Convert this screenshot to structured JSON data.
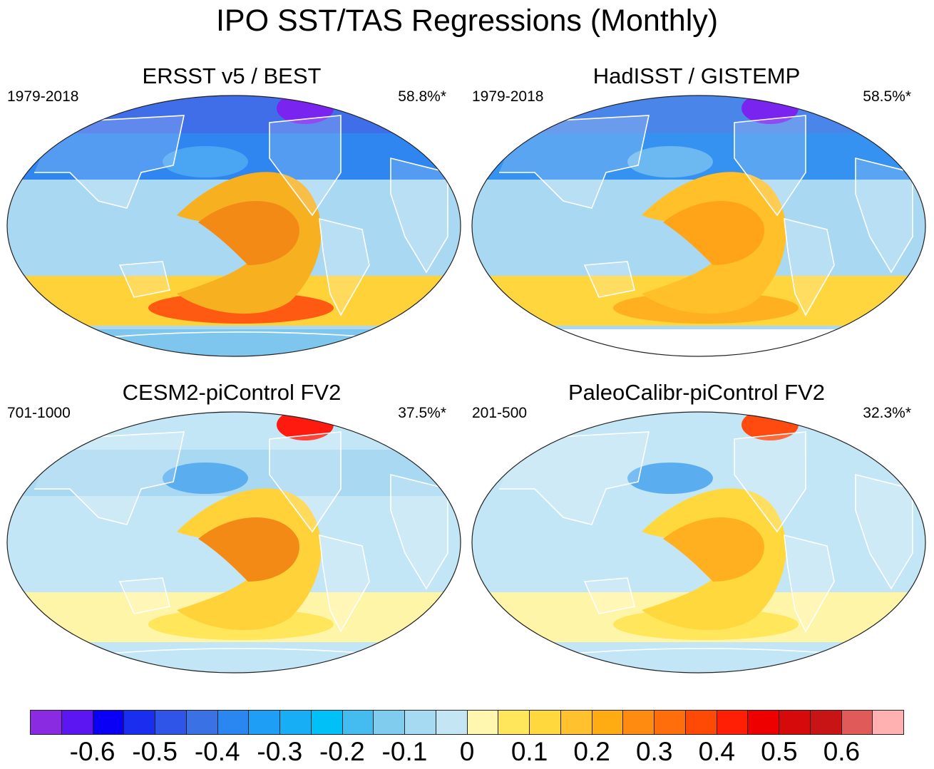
{
  "title": "IPO SST/TAS Regressions (Monthly)",
  "panels": [
    {
      "title": "ERSST v5 / BEST",
      "period": "1979-2018",
      "variance": "58.8%*",
      "style": {
        "arctic": "#3f6ee8",
        "north": "#2f86f0",
        "tropics": "#a9d8f2",
        "pacific": "#f6b020",
        "pacific_hot": "#f48a16",
        "south": "#ffd23a",
        "south_hot": "#ff5a12",
        "antarctic": "#7fc6ee",
        "highlat": "#7a24f0",
        "westpac": "#4aa6f2"
      }
    },
    {
      "title": "HadISST / GISTEMP",
      "period": "1979-2018",
      "variance": "58.5%*",
      "style": {
        "arctic": "#4a86ea",
        "north": "#3692f0",
        "tropics": "#a9d8f2",
        "pacific": "#ffc02a",
        "pacific_hot": "#ffa418",
        "south": "#ffd63e",
        "south_hot": "#ffb020",
        "antarctic": "#ffffff",
        "highlat": "#7a24f0",
        "westpac": "#6cb8f0"
      }
    },
    {
      "title": "CESM2-piControl FV2",
      "period": "701-1000",
      "variance": "37.5%*",
      "style": {
        "arctic": "#c2e6f5",
        "north": "#a9d8f2",
        "tropics": "#c2e6f5",
        "pacific": "#ffd23a",
        "pacific_hot": "#f48a16",
        "south": "#fff5a8",
        "south_hot": "#ffe65a",
        "antarctic": "#c2e6f5",
        "highlat": "#ff1a10",
        "westpac": "#5aaef0"
      }
    },
    {
      "title": "PaleoCalibr-piControl FV2",
      "period": "201-500",
      "variance": "32.3%*",
      "style": {
        "arctic": "#c2e6f5",
        "north": "#c2e6f5",
        "tropics": "#c2e6f5",
        "pacific": "#ffd83e",
        "pacific_hot": "#ffb020",
        "south": "#fff5a8",
        "south_hot": "#ffe65a",
        "antarctic": "#c2e6f5",
        "highlat": "#ff4a10",
        "westpac": "#5aaef0"
      }
    }
  ],
  "colorbar": {
    "colors": [
      "#8a2be2",
      "#5b16f2",
      "#0a00f5",
      "#1a2ef0",
      "#2f55e8",
      "#3a72e6",
      "#2a86f0",
      "#1f9ef5",
      "#17aef5",
      "#00c0f8",
      "#45bcf0",
      "#80ccef",
      "#a6d9f2",
      "#c4e6f4",
      "#fff7b0",
      "#ffe65a",
      "#ffd83e",
      "#ffc22e",
      "#ffab12",
      "#ff8c10",
      "#ff6e0a",
      "#ff4a05",
      "#ff1f05",
      "#ef0000",
      "#d60a0a",
      "#c81414",
      "#e05a5a",
      "#ffb0b0"
    ],
    "labels": [
      "-0.6",
      "-0.5",
      "-0.4",
      "-0.3",
      "-0.2",
      "-0.1",
      "0",
      "0.1",
      "0.2",
      "0.3",
      "0.4",
      "0.5",
      "0.6"
    ],
    "values": [
      -0.6,
      -0.5,
      -0.4,
      -0.3,
      -0.2,
      -0.1,
      0,
      0.1,
      0.2,
      0.3,
      0.4,
      0.5,
      0.6
    ]
  }
}
